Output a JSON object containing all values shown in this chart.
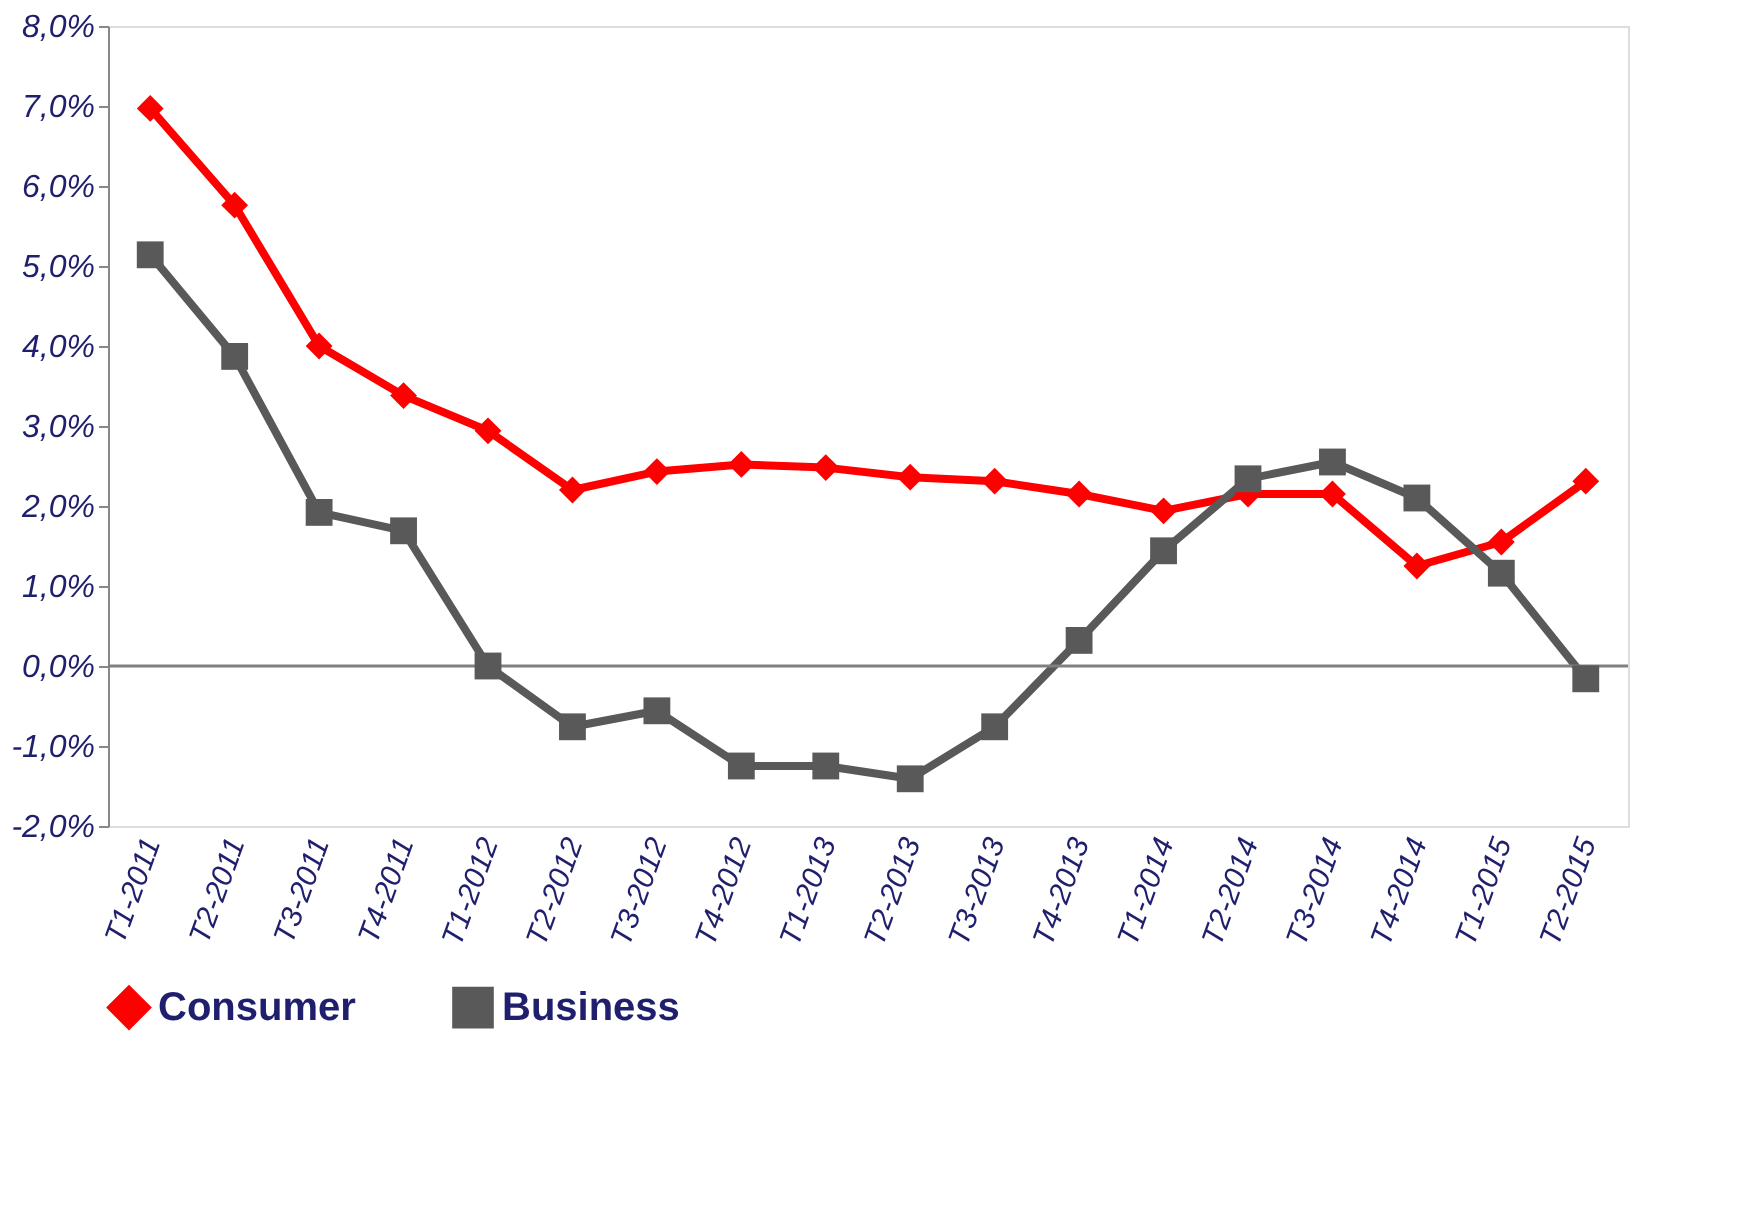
{
  "chart_data": {
    "type": "line",
    "categories": [
      "T1-2011",
      "T2-2011",
      "T3-2011",
      "T4-2011",
      "T1-2012",
      "T2-2012",
      "T3-2012",
      "T4-2012",
      "T1-2013",
      "T2-2013",
      "T3-2013",
      "T4-2013",
      "T1-2014",
      "T2-2014",
      "T3-2014",
      "T4-2014",
      "T1-2015",
      "T2-2015"
    ],
    "series": [
      {
        "name": "Consumer",
        "color": "#ff0000",
        "marker": "diamond",
        "values": [
          6.97,
          5.76,
          4.0,
          3.38,
          2.94,
          2.2,
          2.43,
          2.52,
          2.48,
          2.36,
          2.31,
          2.15,
          1.94,
          2.15,
          2.15,
          1.25,
          1.55,
          2.31
        ]
      },
      {
        "name": "Business",
        "color": "#595959",
        "marker": "square",
        "values": [
          5.14,
          3.87,
          1.92,
          1.69,
          0.0,
          -0.76,
          -0.56,
          -1.25,
          -1.25,
          -1.41,
          -0.76,
          0.32,
          1.44,
          2.34,
          2.55,
          2.1,
          1.16,
          -0.16
        ]
      }
    ],
    "ylim": [
      -2,
      8
    ],
    "yticks": [
      {
        "value": -2,
        "label": "-2,0%"
      },
      {
        "value": -1,
        "label": "-1,0%"
      },
      {
        "value": 0,
        "label": "0,0%"
      },
      {
        "value": 1,
        "label": "1,0%"
      },
      {
        "value": 2,
        "label": "2,0%"
      },
      {
        "value": 3,
        "label": "3,0%"
      },
      {
        "value": 4,
        "label": "4,0%"
      },
      {
        "value": 5,
        "label": "5,0%"
      },
      {
        "value": 6,
        "label": "6,0%"
      },
      {
        "value": 7,
        "label": "7,0%"
      },
      {
        "value": 8,
        "label": "8,0%"
      }
    ],
    "ref_lines": [
      {
        "axis": "y",
        "value": 0,
        "color": "#808080"
      }
    ],
    "grid": false,
    "legend": "bottom",
    "line_style": "solid"
  }
}
